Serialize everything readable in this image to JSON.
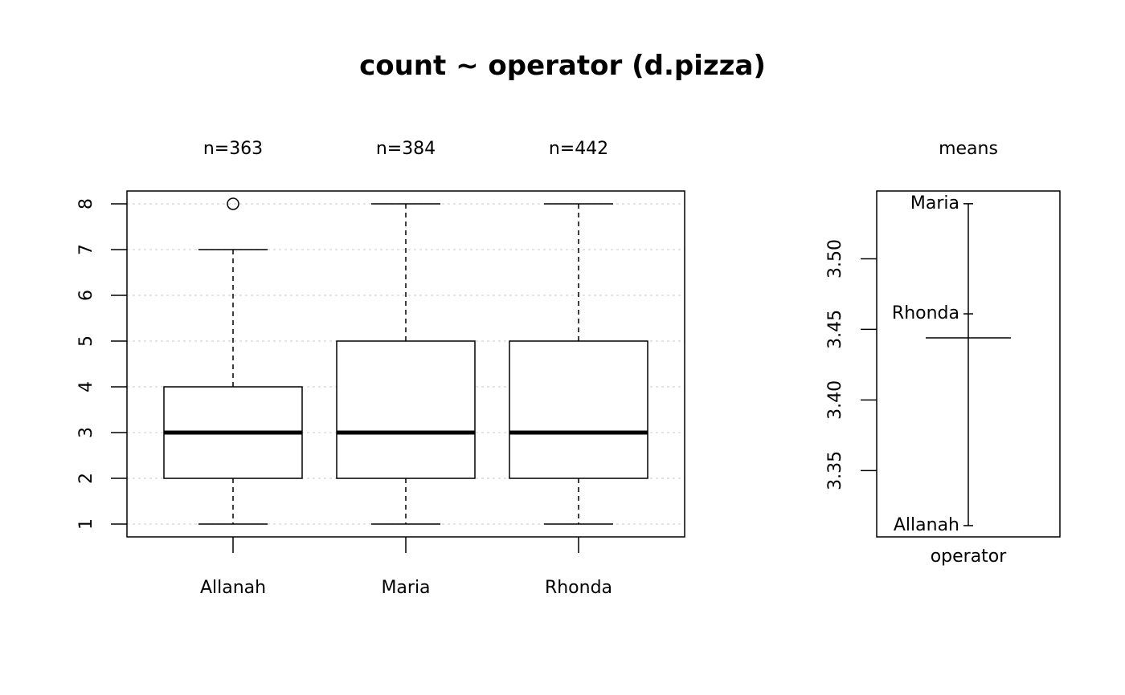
{
  "chart_data": [
    {
      "type": "box",
      "title": "count ~ operator (d.pizza)",
      "categories": [
        "Allanah",
        "Maria",
        "Rhonda"
      ],
      "n_labels": [
        "n=363",
        "n=384",
        "n=442"
      ],
      "boxes": [
        {
          "min": 1,
          "q1": 2,
          "median": 3,
          "q3": 4,
          "max": 7,
          "outliers": [
            8
          ]
        },
        {
          "min": 1,
          "q1": 2,
          "median": 3,
          "q3": 5,
          "max": 8,
          "outliers": []
        },
        {
          "min": 1,
          "q1": 2,
          "median": 3,
          "q3": 5,
          "max": 8,
          "outliers": []
        }
      ],
      "yticks": [
        "1",
        "2",
        "3",
        "4",
        "5",
        "6",
        "7",
        "8"
      ],
      "ylim": [
        0.72,
        8.28
      ],
      "grid": true,
      "grid_color": "#d3d3d3"
    },
    {
      "type": "means",
      "title": "means",
      "xlabel": "operator",
      "points": [
        {
          "label": "Allanah",
          "value": 3.311
        },
        {
          "label": "Maria",
          "value": 3.539
        },
        {
          "label": "Rhonda",
          "value": 3.461
        }
      ],
      "overall_mean": 3.444,
      "yticks": [
        "3.35",
        "3.40",
        "3.45",
        "3.50"
      ],
      "ylim": [
        3.303,
        3.548
      ]
    }
  ]
}
